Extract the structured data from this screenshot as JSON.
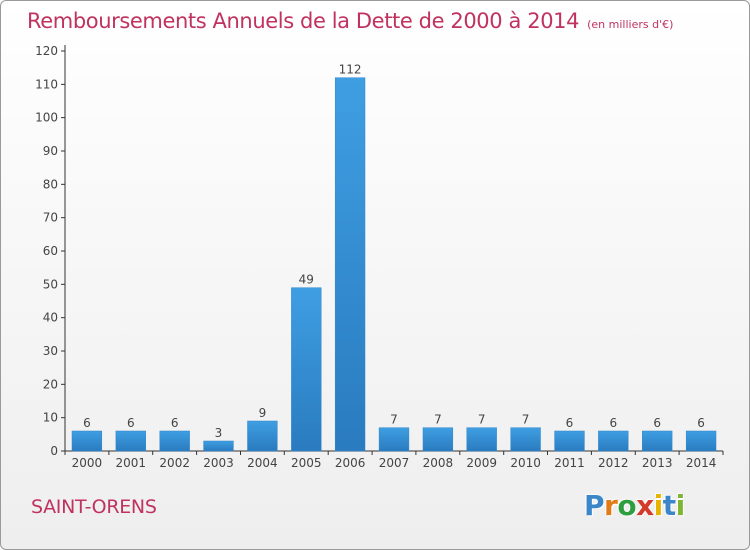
{
  "header": {
    "title": "Remboursements Annuels de la Dette de 2000 à 2014",
    "subtitle": "(en milliers d'€)"
  },
  "footer": {
    "city": "SAINT-ORENS",
    "logo_letters": [
      "P",
      "r",
      "o",
      "x",
      "i",
      "t",
      "i"
    ],
    "logo_colors": [
      "#3a86c8",
      "#e07b16",
      "#2e9e3e",
      "#d43a2a",
      "#e6b400",
      "#3a86c8",
      "#7fb535"
    ]
  },
  "colors": {
    "bar": "#3f9ee2",
    "bar_dark": "#2a7bbf",
    "axis": "#333333",
    "accent": "#c0325f"
  },
  "chart_data": {
    "type": "bar",
    "title": "Remboursements Annuels de la Dette de 2000 à 2014",
    "subtitle": "(en milliers d'€)",
    "xlabel": "",
    "ylabel": "",
    "ylim": [
      0,
      120
    ],
    "yticks": [
      0,
      10,
      20,
      30,
      40,
      50,
      60,
      70,
      80,
      90,
      100,
      110,
      120
    ],
    "grid": false,
    "categories": [
      "2000",
      "2001",
      "2002",
      "2003",
      "2004",
      "2005",
      "2006",
      "2007",
      "2008",
      "2009",
      "2010",
      "2011",
      "2012",
      "2013",
      "2014"
    ],
    "values": [
      6,
      6,
      6,
      3,
      9,
      49,
      112,
      7,
      7,
      7,
      7,
      6,
      6,
      6,
      6
    ]
  }
}
